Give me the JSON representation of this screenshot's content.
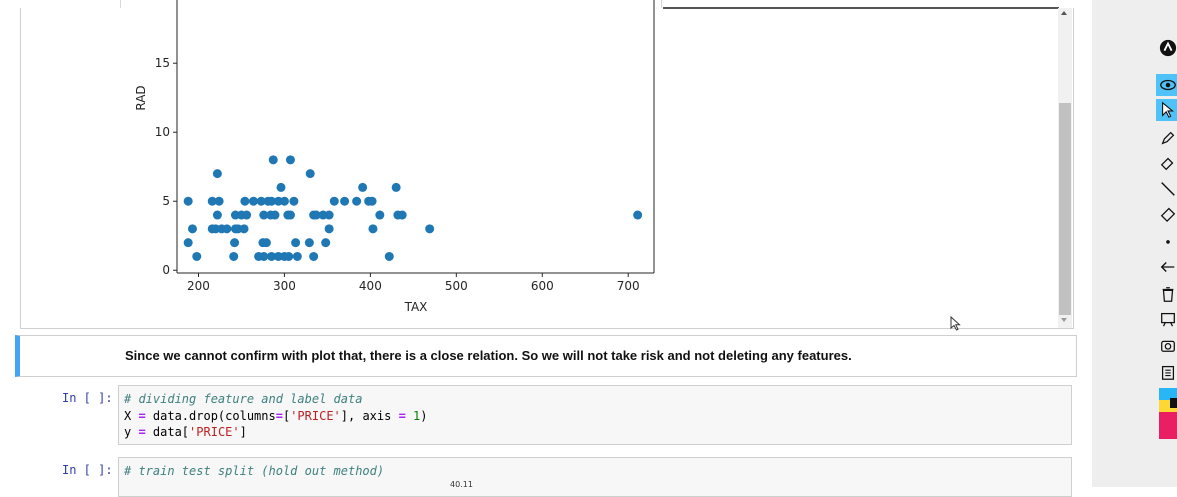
{
  "chart_data": {
    "type": "scatter",
    "xlabel": "TAX",
    "ylabel": "RAD",
    "xlim": [
      175,
      730
    ],
    "ylim": [
      -0.2,
      19
    ],
    "x_ticks": [
      200,
      300,
      400,
      500,
      600,
      700
    ],
    "y_ticks": [
      0,
      5,
      10,
      15
    ],
    "marker_color": "#1f77b4",
    "points": [
      [
        188,
        2
      ],
      [
        188,
        5
      ],
      [
        193,
        3
      ],
      [
        198,
        1
      ],
      [
        216,
        3
      ],
      [
        216,
        5
      ],
      [
        220,
        3
      ],
      [
        222,
        7
      ],
      [
        222,
        4
      ],
      [
        224,
        5
      ],
      [
        227,
        3
      ],
      [
        233,
        3
      ],
      [
        241,
        1
      ],
      [
        242,
        2
      ],
      [
        243,
        4
      ],
      [
        243,
        3
      ],
      [
        246,
        3
      ],
      [
        250,
        4
      ],
      [
        253,
        3
      ],
      [
        254,
        5
      ],
      [
        256,
        4
      ],
      [
        264,
        5
      ],
      [
        270,
        1
      ],
      [
        273,
        5
      ],
      [
        275,
        2
      ],
      [
        276,
        4
      ],
      [
        276,
        1
      ],
      [
        279,
        2
      ],
      [
        281,
        5
      ],
      [
        284,
        4
      ],
      [
        285,
        5
      ],
      [
        285,
        1
      ],
      [
        287,
        8
      ],
      [
        289,
        4
      ],
      [
        293,
        5
      ],
      [
        293,
        1
      ],
      [
        296,
        6
      ],
      [
        300,
        1
      ],
      [
        300,
        5
      ],
      [
        304,
        4
      ],
      [
        305,
        1
      ],
      [
        307,
        8
      ],
      [
        307,
        4
      ],
      [
        311,
        5
      ],
      [
        313,
        2
      ],
      [
        315,
        1
      ],
      [
        329,
        2
      ],
      [
        330,
        7
      ],
      [
        334,
        1
      ],
      [
        334,
        4
      ],
      [
        337,
        4
      ],
      [
        345,
        4
      ],
      [
        348,
        2
      ],
      [
        352,
        4
      ],
      [
        352,
        3
      ],
      [
        358,
        5
      ],
      [
        370,
        5
      ],
      [
        384,
        5
      ],
      [
        391,
        6
      ],
      [
        398,
        5
      ],
      [
        402,
        5
      ],
      [
        403,
        3
      ],
      [
        411,
        4
      ],
      [
        422,
        1
      ],
      [
        430,
        6
      ],
      [
        432,
        4
      ],
      [
        437,
        4
      ],
      [
        469,
        3
      ],
      [
        711,
        4
      ]
    ]
  },
  "markdown": {
    "text": "Since we cannot confirm with plot that, there is a close relation. So we will not take risk and not deleting any features."
  },
  "cells": [
    {
      "prompt": "In [ ]:",
      "lines": [
        "# dividing feature and label data",
        "X = data.drop(columns=['PRICE'], axis = 1)",
        "y = data['PRICE']"
      ]
    },
    {
      "prompt": "In [ ]:",
      "lines": [
        "# train test split (hold out method)"
      ]
    }
  ],
  "tooltip": "40.11",
  "toolbar": {
    "icons": [
      "logo-icon",
      "eye-icon",
      "pointer-icon",
      "pen-icon",
      "highlighter-icon",
      "line-icon",
      "eraser-icon",
      "dot-icon",
      "undo-icon",
      "trash-icon",
      "whiteboard-icon",
      "camera-icon",
      "clipboard-icon"
    ],
    "palette": [
      "#29b6f6",
      "#fdd835",
      "#e91e63"
    ]
  }
}
